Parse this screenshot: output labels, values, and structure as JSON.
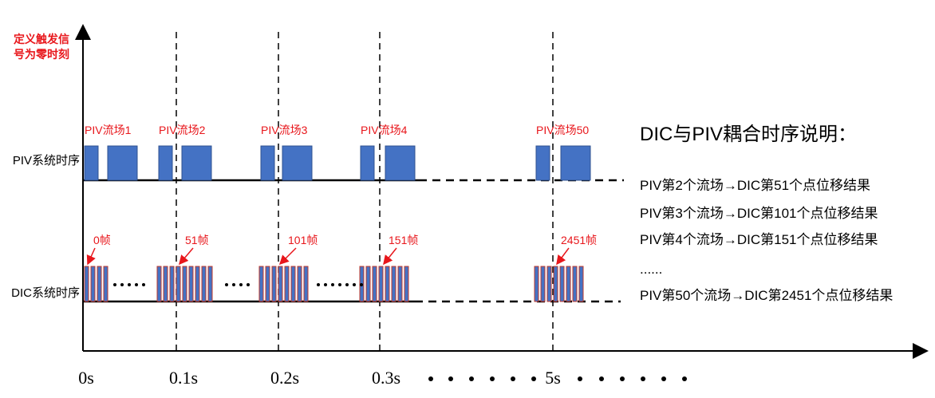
{
  "annotation": {
    "lines": [
      "定义触发信",
      "号为零时刻"
    ]
  },
  "rows": [
    "PIV系统时序",
    "DIC系统时序"
  ],
  "piv_labels": [
    "PIV流场1",
    "PIV流场2",
    "PIV流场3",
    "PIV流场4",
    "PIV流场50"
  ],
  "dic_labels": [
    "0帧",
    "51帧",
    "101帧",
    "151帧",
    "2451帧"
  ],
  "time_labels": [
    "0s",
    "0.1s",
    "0.2s",
    "0.3s",
    "5s"
  ],
  "legend": {
    "title": "DIC与PIV耦合时序说明：",
    "items": [
      "PIV第2个流场→DIC第51个点位移结果",
      "PIV第3个流场→DIC第101个点位移结果",
      "PIV第4个流场→DIC第151个点位移结果",
      "......",
      "PIV第50个流场→DIC第2451个点位移结果"
    ]
  }
}
